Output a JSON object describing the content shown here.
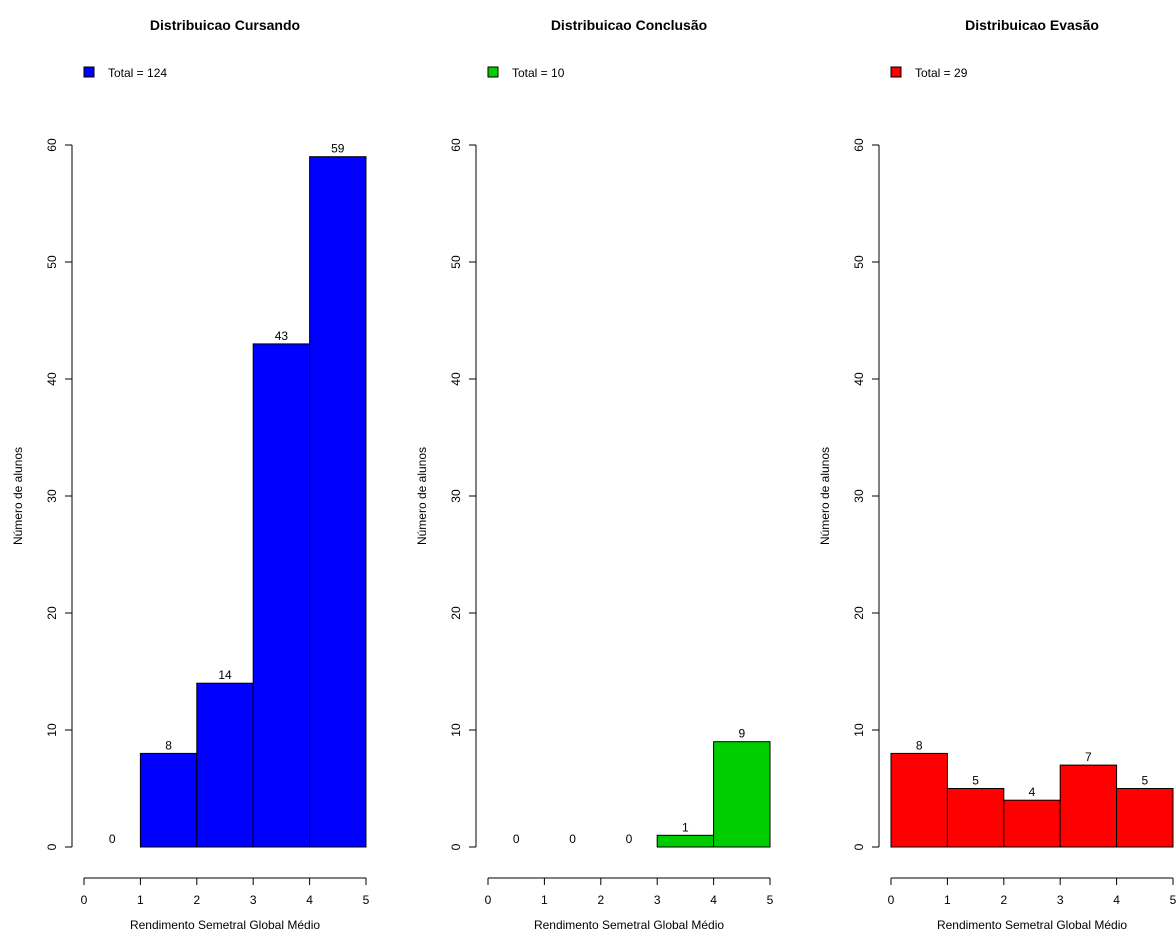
{
  "chart_data": [
    {
      "type": "bar",
      "title": "Distribuicao Cursando",
      "xlabel": "Rendimento Semetral Global Médio",
      "ylabel": "Número de alunos",
      "bins": [
        [
          0,
          1
        ],
        [
          1,
          2
        ],
        [
          2,
          3
        ],
        [
          3,
          4
        ],
        [
          4,
          5
        ]
      ],
      "values": [
        0,
        8,
        14,
        43,
        59
      ],
      "xlim": [
        0,
        5
      ],
      "ylim": [
        0,
        60
      ],
      "x_ticks": [
        0,
        1,
        2,
        3,
        4,
        5
      ],
      "y_ticks": [
        0,
        10,
        20,
        30,
        40,
        50,
        60
      ],
      "color": "#0000FF",
      "legend": "Total = 124",
      "legend_position": "top-left",
      "grid": false
    },
    {
      "type": "bar",
      "title": "Distribuicao Conclusão",
      "xlabel": "Rendimento Semetral Global Médio",
      "ylabel": "Número de alunos",
      "bins": [
        [
          0,
          1
        ],
        [
          1,
          2
        ],
        [
          2,
          3
        ],
        [
          3,
          4
        ],
        [
          4,
          5
        ]
      ],
      "values": [
        0,
        0,
        0,
        1,
        9
      ],
      "xlim": [
        0,
        5
      ],
      "ylim": [
        0,
        60
      ],
      "x_ticks": [
        0,
        1,
        2,
        3,
        4,
        5
      ],
      "y_ticks": [
        0,
        10,
        20,
        30,
        40,
        50,
        60
      ],
      "color": "#00CD00",
      "legend": "Total = 10",
      "legend_position": "top-left",
      "grid": false
    },
    {
      "type": "bar",
      "title": "Distribuicao Evasão",
      "xlabel": "Rendimento Semetral Global Médio",
      "ylabel": "Número de alunos",
      "bins": [
        [
          0,
          1
        ],
        [
          1,
          2
        ],
        [
          2,
          3
        ],
        [
          3,
          4
        ],
        [
          4,
          5
        ]
      ],
      "values": [
        8,
        5,
        4,
        7,
        5
      ],
      "xlim": [
        0,
        5
      ],
      "ylim": [
        0,
        60
      ],
      "x_ticks": [
        0,
        1,
        2,
        3,
        4,
        5
      ],
      "y_ticks": [
        0,
        10,
        20,
        30,
        40,
        50,
        60
      ],
      "color": "#FF0000",
      "legend": "Total = 29",
      "legend_position": "top-left",
      "grid": false
    }
  ]
}
